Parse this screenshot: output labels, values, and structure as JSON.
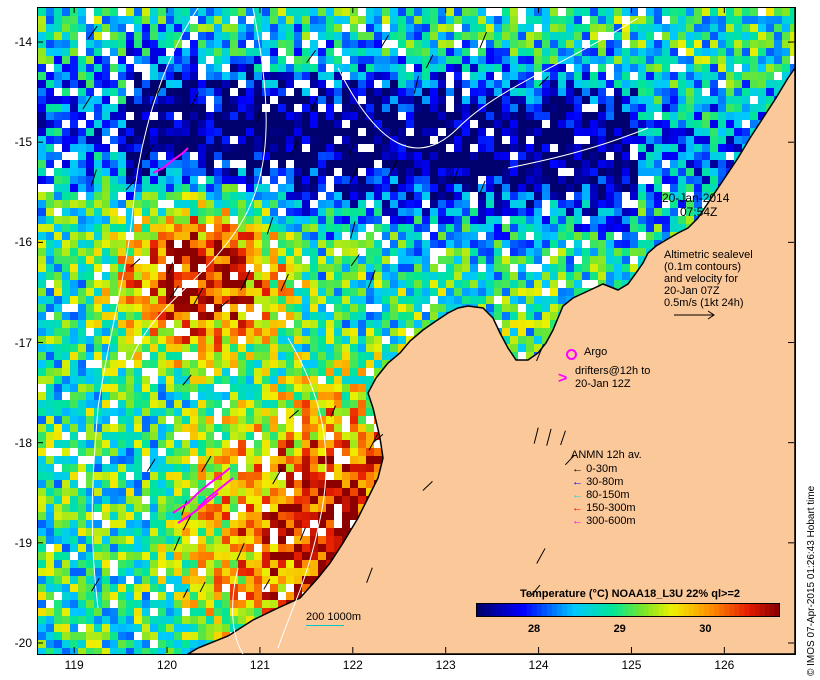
{
  "map": {
    "y_ticks": [
      "-14",
      "-15",
      "-16",
      "-17",
      "-18",
      "-19",
      "-20"
    ],
    "x_ticks": [
      "119",
      "120",
      "121",
      "122",
      "123",
      "124",
      "125",
      "126"
    ],
    "lon_range": [
      118.6,
      126.75
    ],
    "lat_range": [
      -20.1,
      -13.65
    ]
  },
  "annotations": {
    "date": "20-Jan-2014",
    "time": "07:54Z",
    "altimetry": [
      "Altimetric sealevel",
      "(0.1m contours)",
      "and velocity for",
      "20-Jan 07Z",
      "0.5m/s (1kt 24h)"
    ],
    "argo_label": "Argo",
    "drifters": [
      "drifters@12h to",
      "20-Jan 12Z"
    ],
    "depth_scale": "200  1000m",
    "credit": "© IMOS 07-Apr-2015 01:26:43 Hobart time"
  },
  "anmn_legend": {
    "title": "ANMN 12h av.",
    "items": [
      {
        "label": "0-30m",
        "color": "#000000"
      },
      {
        "label": "30-80m",
        "color": "#0000ff"
      },
      {
        "label": "80-150m",
        "color": "#00e0e0"
      },
      {
        "label": "150-300m",
        "color": "#ff0000"
      },
      {
        "label": "300-600m",
        "color": "#ff00ff"
      }
    ]
  },
  "colorbar": {
    "title": "Temperature (°C) NOAA18_L3U 22% ql>=2",
    "ticks": [
      "28",
      "29",
      "30"
    ],
    "tick_values": [
      28,
      29,
      30
    ],
    "range": [
      27.3,
      30.85
    ]
  },
  "colors": {
    "land": "#fbc89a",
    "argo": "#ff00ff",
    "contour": "#ffffff"
  }
}
